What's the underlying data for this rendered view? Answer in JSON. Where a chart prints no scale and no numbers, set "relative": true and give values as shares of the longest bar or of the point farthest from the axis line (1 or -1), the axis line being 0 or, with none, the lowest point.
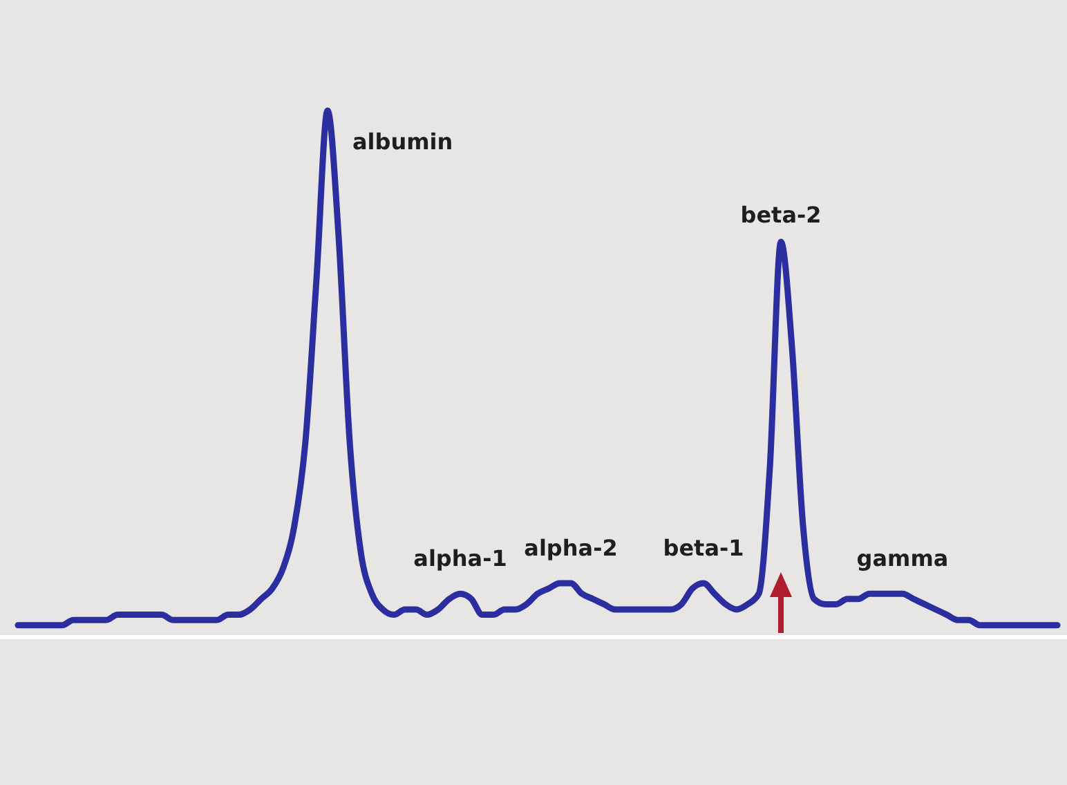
{
  "chart_data": {
    "type": "line",
    "relative": true,
    "color": "#2b2e9e",
    "marker": "none",
    "line_style": "solid",
    "categories": [
      null,
      null,
      null,
      null,
      null,
      null,
      null,
      null,
      null,
      null,
      null,
      null,
      null,
      null,
      null,
      null,
      null,
      null,
      null,
      null,
      null,
      null,
      null,
      null,
      null,
      null,
      null,
      null,
      null,
      null,
      null,
      null,
      null,
      null,
      null,
      null,
      null,
      null,
      null,
      null,
      null,
      null,
      null,
      null,
      null,
      null,
      null,
      null,
      null,
      null,
      null,
      null,
      null,
      null,
      null,
      null,
      null,
      null,
      null,
      null,
      null,
      null,
      null,
      null,
      null,
      null,
      null,
      null,
      null,
      null,
      null,
      null,
      null,
      null,
      null,
      null,
      null,
      null,
      null,
      null,
      null,
      null,
      null,
      null,
      null,
      null,
      null,
      null,
      null,
      null,
      null,
      null,
      null,
      null,
      null
    ],
    "values": [
      0.02,
      0.02,
      0.02,
      0.02,
      0.02,
      0.03,
      0.03,
      0.03,
      0.03,
      0.04,
      0.04,
      0.04,
      0.04,
      0.04,
      0.03,
      0.03,
      0.03,
      0.03,
      0.03,
      0.04,
      0.04,
      0.05,
      0.07,
      0.09,
      0.13,
      0.21,
      0.37,
      0.68,
      1,
      0.76,
      0.37,
      0.16,
      0.08,
      0.05,
      0.04,
      0.05,
      0.05,
      0.04,
      0.05,
      0.07,
      0.08,
      0.07,
      0.04,
      0.04,
      0.05,
      0.05,
      0.06,
      0.08,
      0.09,
      0.1,
      0.1,
      0.08,
      0.07,
      0.06,
      0.05,
      0.05,
      0.05,
      0.05,
      0.05,
      0.05,
      0.06,
      0.09,
      0.1,
      0.08,
      0.06,
      0.05,
      0.06,
      0.08,
      0.32,
      0.75,
      0.55,
      0.21,
      0.07,
      0.06,
      0.06,
      0.07,
      0.07,
      0.08,
      0.08,
      0.08,
      0.08,
      0.07,
      0.06,
      0.05,
      0.04,
      0.03,
      0.03,
      0.02,
      0.02,
      0.02,
      0.02,
      0.02,
      0.02,
      0.02,
      0.02
    ],
    "annotations": [
      "albumin",
      "alpha-1",
      "alpha-2",
      "beta-1",
      "beta-2",
      "gamma"
    ]
  }
}
